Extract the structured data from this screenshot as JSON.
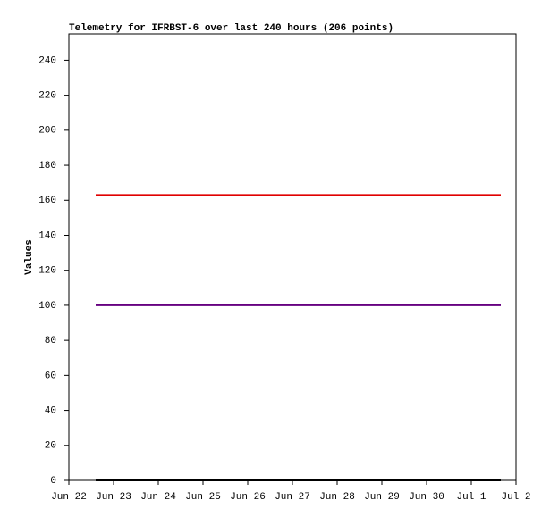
{
  "chart_data": {
    "type": "line",
    "title": "Telemetry for IFRBST-6 over last 240 hours (206 points)",
    "ylabel": "Values",
    "x": [
      0.6,
      9.66
    ],
    "series": [
      {
        "color": "#e00000",
        "values": [
          163,
          163
        ]
      },
      {
        "color": "#660080",
        "values": [
          100,
          100
        ]
      },
      {
        "color": "#000000",
        "values": [
          0,
          0
        ]
      }
    ],
    "xlim": [
      0,
      10
    ],
    "xticks": [
      {
        "value": 0,
        "label": "Jun 22"
      },
      {
        "value": 1,
        "label": "Jun 23"
      },
      {
        "value": 2,
        "label": "Jun 24"
      },
      {
        "value": 3,
        "label": "Jun 25"
      },
      {
        "value": 4,
        "label": "Jun 26"
      },
      {
        "value": 5,
        "label": "Jun 27"
      },
      {
        "value": 6,
        "label": "Jun 28"
      },
      {
        "value": 7,
        "label": "Jun 29"
      },
      {
        "value": 8,
        "label": "Jun 30"
      },
      {
        "value": 9,
        "label": "Jul 1"
      },
      {
        "value": 10,
        "label": "Jul 2"
      }
    ],
    "ylim": [
      0,
      255
    ],
    "yticks": [
      0,
      20,
      40,
      60,
      80,
      100,
      120,
      140,
      160,
      180,
      200,
      220,
      240
    ],
    "grid": false
  }
}
